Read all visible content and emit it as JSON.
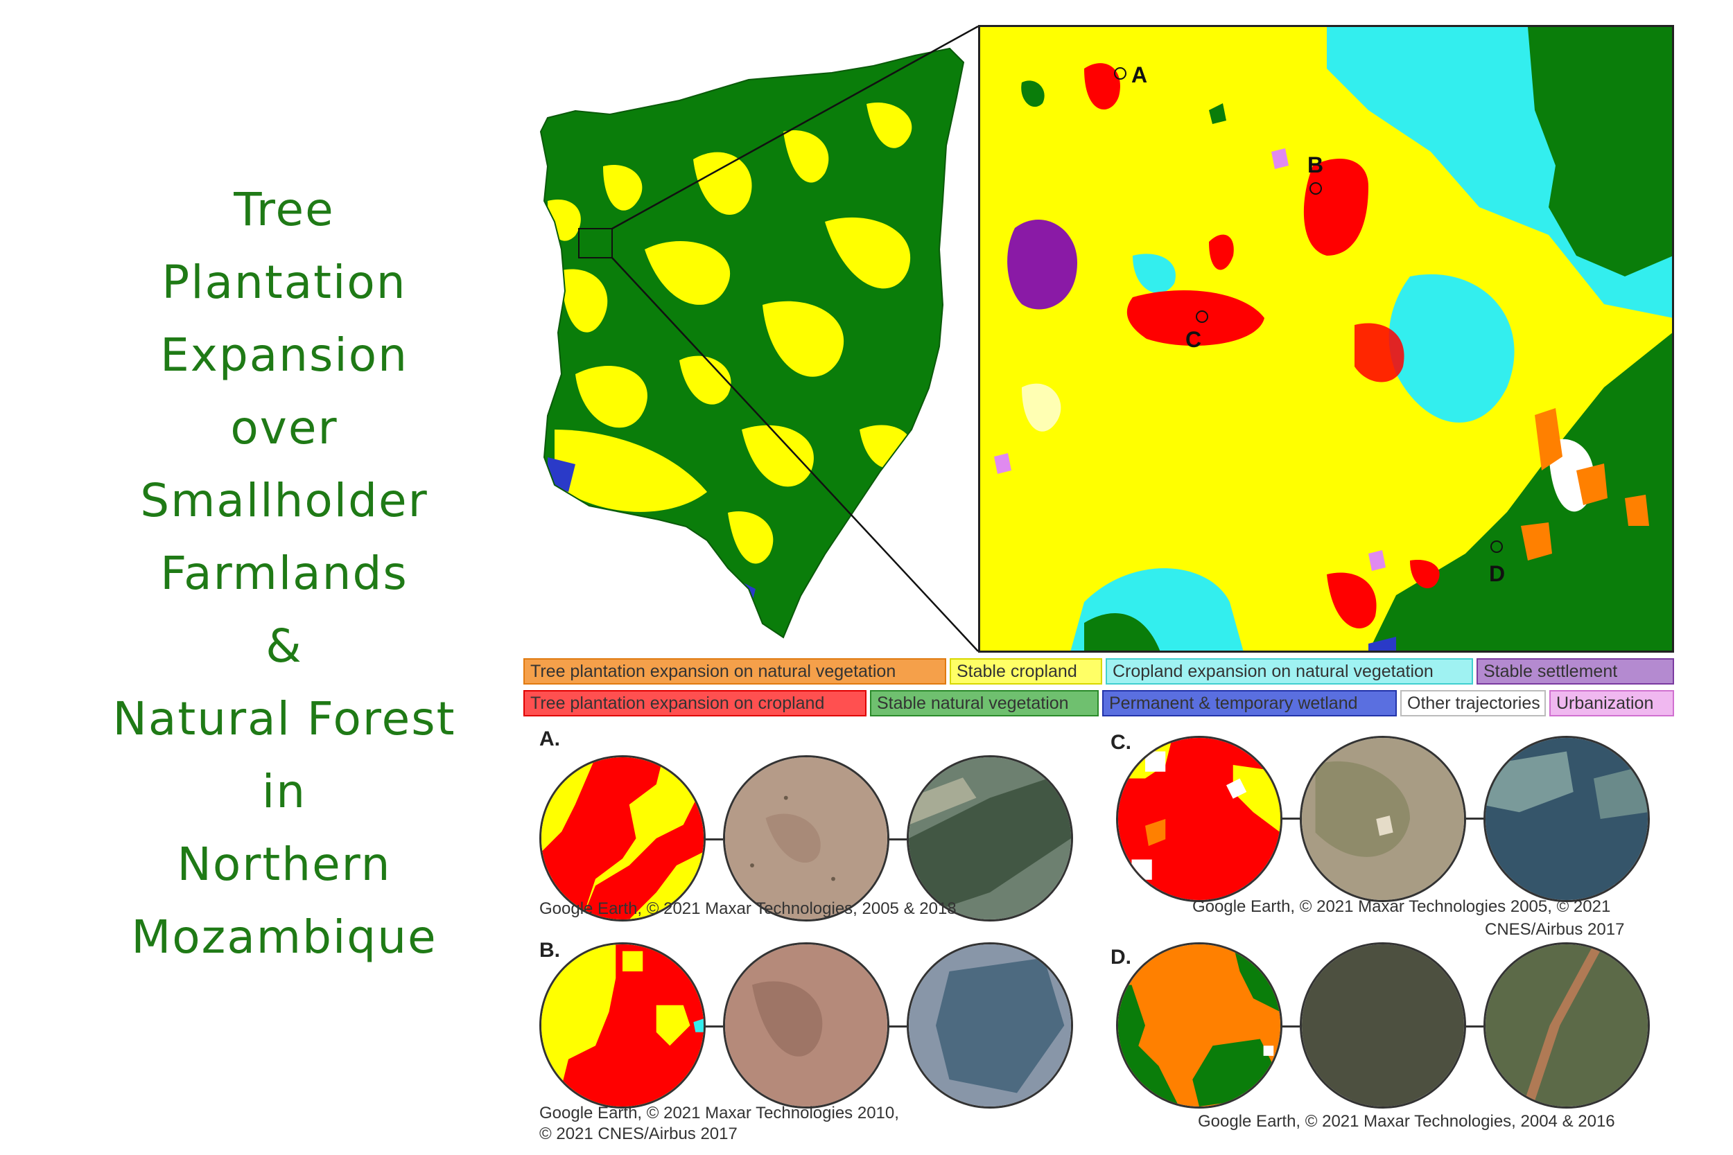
{
  "title": {
    "lines": [
      "Tree",
      "Plantation",
      "Expansion",
      "over",
      "Smallholder",
      "Farmlands",
      "&",
      "Natural Forest",
      "in",
      "Northern",
      "Mozambique"
    ],
    "color": "#1f7a16"
  },
  "map": {
    "point_labels": [
      "A",
      "B",
      "C",
      "D"
    ]
  },
  "legend": {
    "items": [
      {
        "label": "Tree plantation expansion on natural vegetation",
        "fill": "#f5a04a",
        "border": "#e07a10"
      },
      {
        "label": "Stable cropland",
        "fill": "#ffff66",
        "border": "#d8d800"
      },
      {
        "label": "Cropland expansion on natural vegetation",
        "fill": "#9ff2f2",
        "border": "#40d0d0"
      },
      {
        "label": "Stable settlement",
        "fill": "#b48ad0",
        "border": "#7a3aa0"
      },
      {
        "label": "Tree plantation expansion on cropland",
        "fill": "#ff5050",
        "border": "#e00000"
      },
      {
        "label": "Stable natural vegetation",
        "fill": "#6fc06f",
        "border": "#2a8a2a"
      },
      {
        "label": "Permanent & temporary wetland",
        "fill": "#5a6fe0",
        "border": "#2233aa"
      },
      {
        "label": "Other trajectories",
        "fill": "#ffffff",
        "border": "#bbbbbb"
      },
      {
        "label": "Urbanization",
        "fill": "#f0b8f0",
        "border": "#d070d0"
      }
    ]
  },
  "panels": [
    {
      "label": "A.",
      "credit": "Google Earth, © 2021 Maxar Technologies, 2005 & 2018"
    },
    {
      "label": "B.",
      "credit_line1": "Google Earth, © 2021 Maxar Technologies 2010,",
      "credit_line2": "© 2021 CNES/Airbus 2017"
    },
    {
      "label": "C.",
      "credit_line1": "Google Earth, © 2021 Maxar Technologies 2005, © 2021",
      "credit_line2": "CNES/Airbus 2017"
    },
    {
      "label": "D.",
      "credit": "Google Earth, © 2021 Maxar Technologies, 2004 & 2016"
    }
  ],
  "colors": {
    "cropland": "#ffff00",
    "plantation_on_cropland": "#ff0000",
    "plantation_on_natural": "#ff8000",
    "natural_vegetation": "#0a7d0a",
    "cropland_expansion": "#33eeee",
    "settlement": "#8a1aa6",
    "urbanization": "#e08af0",
    "wetland": "#2a3ac8",
    "other": "#ffffff"
  }
}
